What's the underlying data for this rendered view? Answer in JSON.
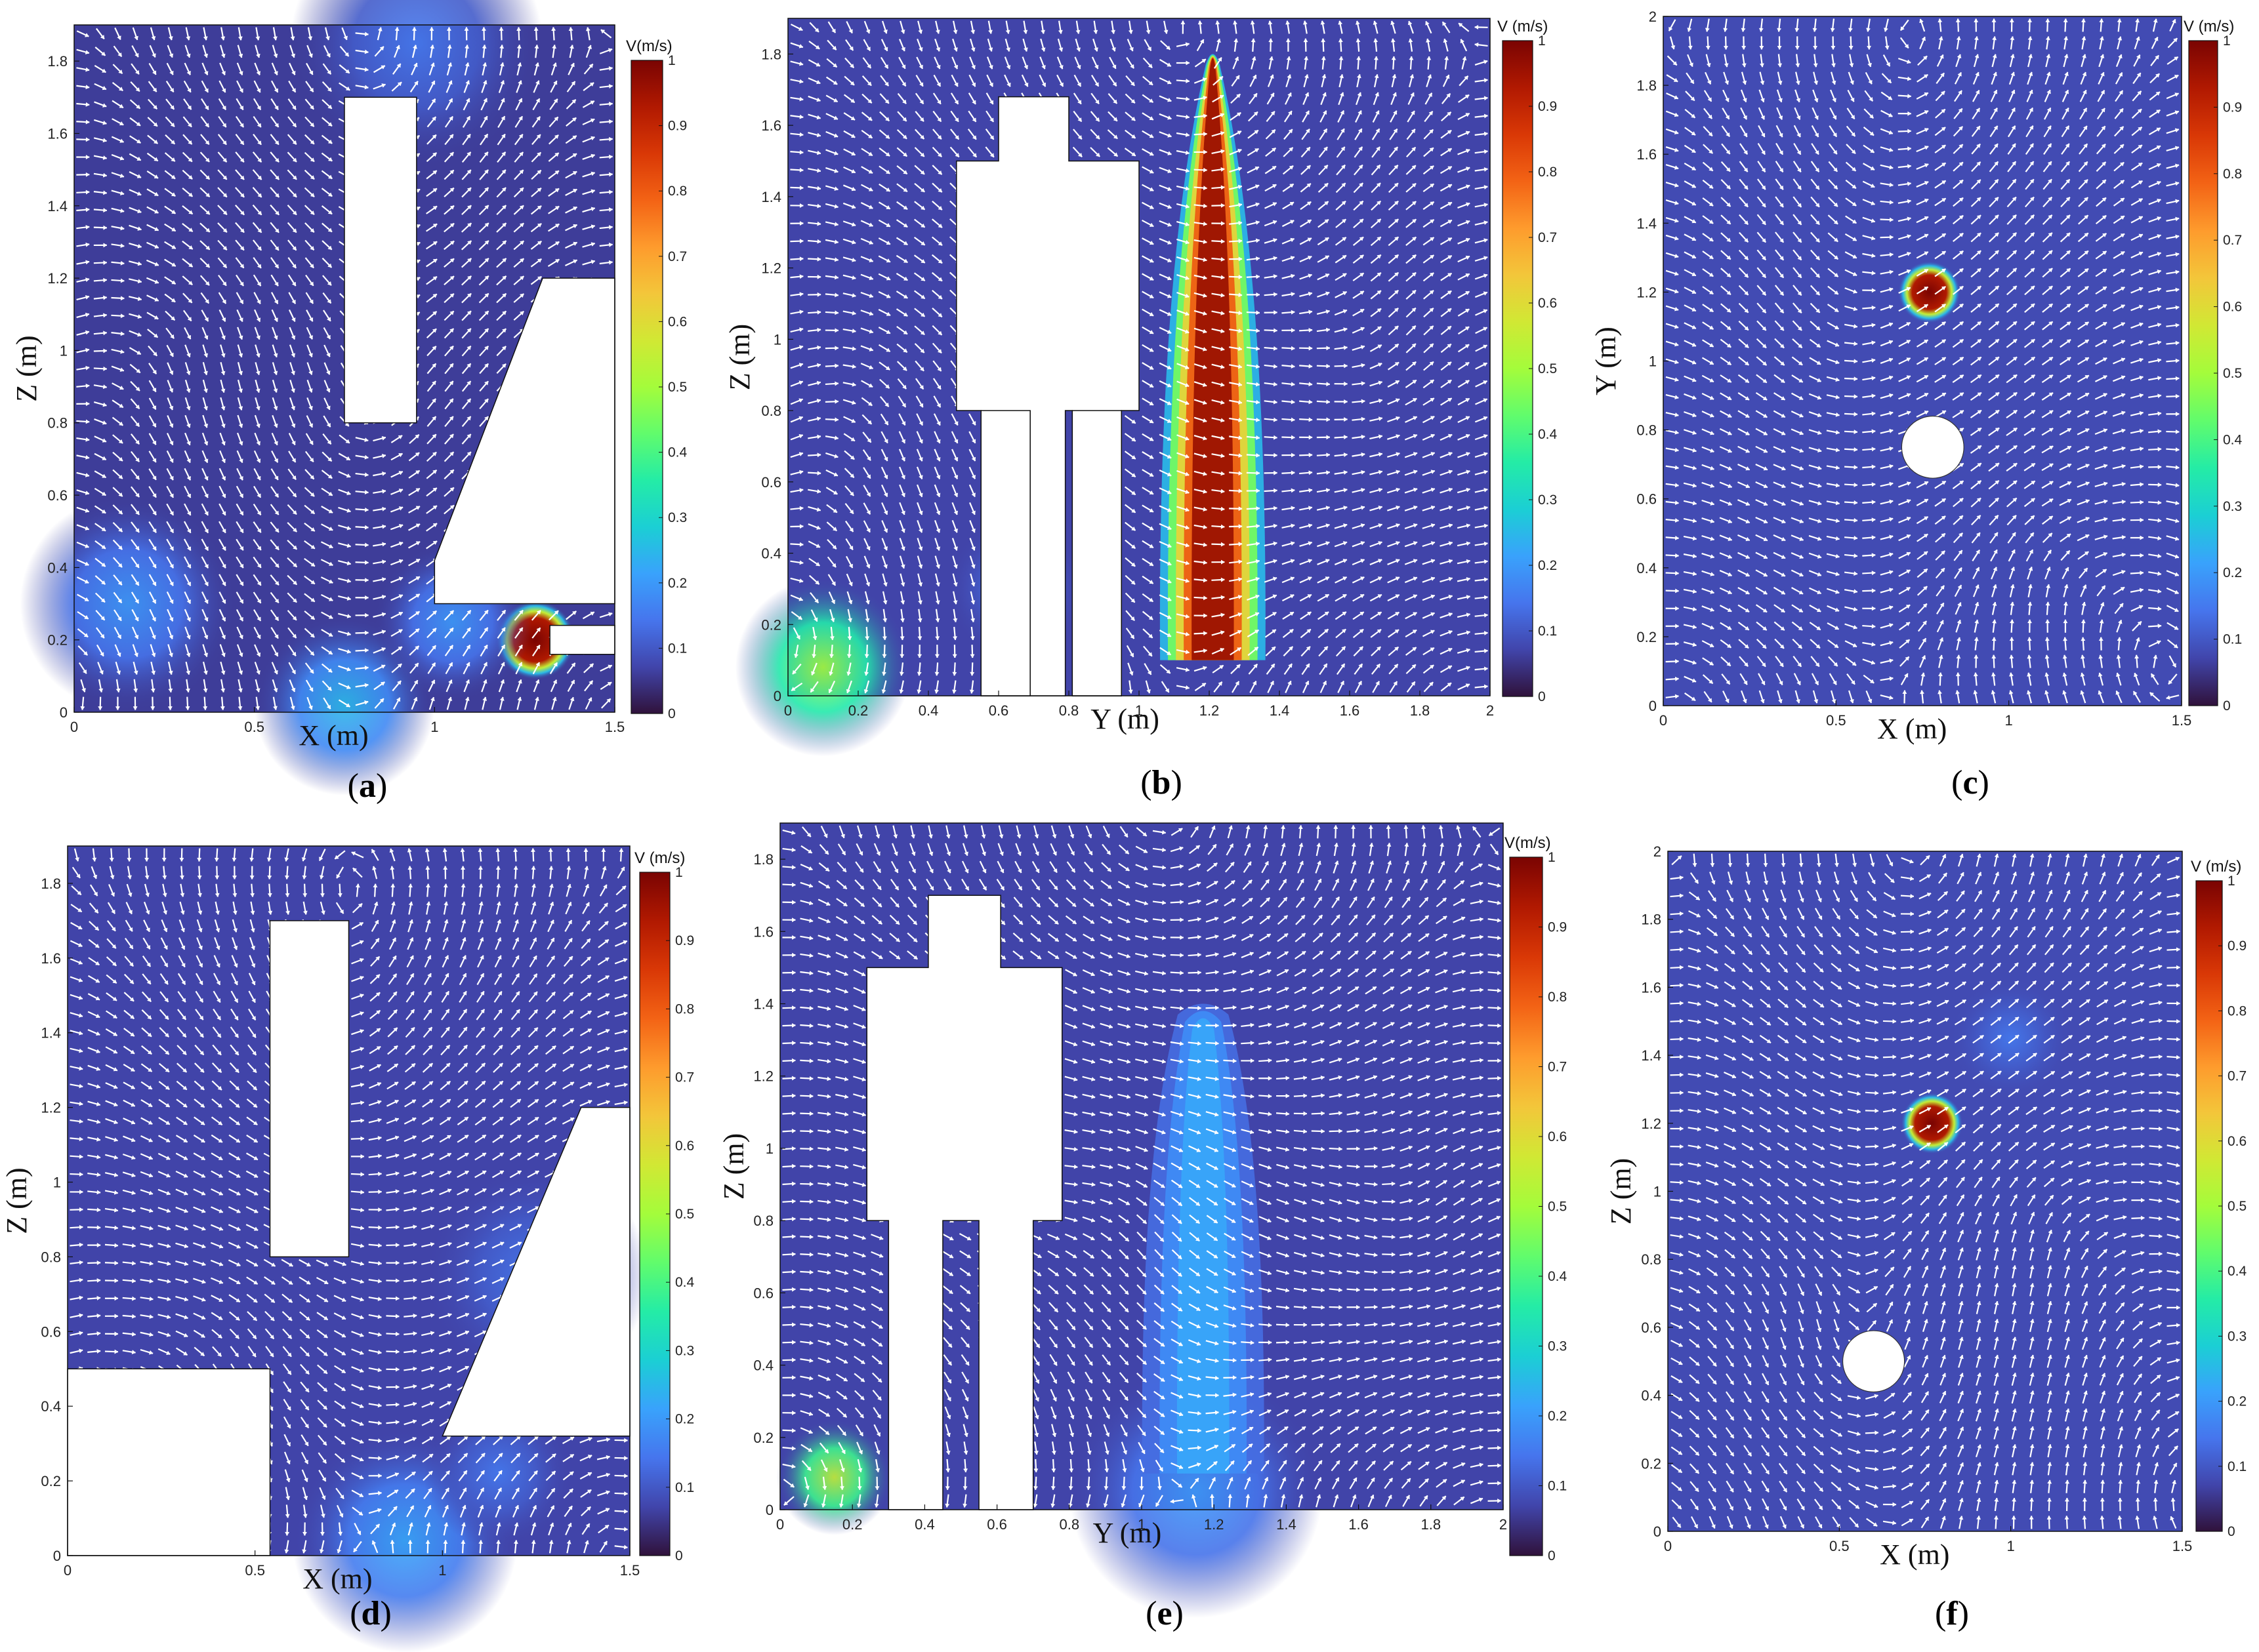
{
  "colorbar": {
    "ticks": [
      "0",
      "0.1",
      "0.2",
      "0.3",
      "0.4",
      "0.5",
      "0.6",
      "0.7",
      "0.8",
      "0.9",
      "1"
    ],
    "colormap": [
      "#30123b",
      "#4145ab",
      "#4675ed",
      "#39a2fc",
      "#1bcfd4",
      "#24eca6",
      "#61fc6c",
      "#a4fc3b",
      "#d1e834",
      "#f3c63a",
      "#fe9b2d",
      "#f36315",
      "#d93806",
      "#b11901",
      "#7a0402"
    ]
  },
  "chart_data": [
    {
      "type": "heatmap",
      "panel": "a",
      "caption": "(a)",
      "xlabel": "X (m)",
      "ylabel": "Z (m)",
      "xlim": [
        0,
        1.5
      ],
      "ylim": [
        0,
        1.9
      ],
      "xticks": [
        "0",
        "0.5",
        "1",
        "1.5"
      ],
      "yticks": [
        "0",
        "0.2",
        "0.4",
        "0.6",
        "0.8",
        "1",
        "1.2",
        "1.4",
        "1.6",
        "1.8"
      ],
      "colorbar_title": "V(m/s)",
      "clim": [
        0,
        1
      ],
      "background_speed": 0.06,
      "hotspots": [
        {
          "x": 1.28,
          "y": 0.2,
          "r": 0.11,
          "v": 1.0
        },
        {
          "x": 0.15,
          "y": 0.3,
          "r": 0.3,
          "v": 0.2
        },
        {
          "x": 0.75,
          "y": 0.02,
          "r": 0.25,
          "v": 0.25
        },
        {
          "x": 1.05,
          "y": 0.25,
          "r": 0.22,
          "v": 0.2
        },
        {
          "x": 0.95,
          "y": 1.85,
          "r": 0.35,
          "v": 0.15
        }
      ],
      "vortices": [
        {
          "x": 0.8,
          "y": 0.75,
          "s": 1
        },
        {
          "x": 0.3,
          "y": 1.1,
          "s": -1
        }
      ]
    },
    {
      "type": "heatmap",
      "panel": "b",
      "caption": "(b)",
      "xlabel": "Y (m)",
      "ylabel": "Z (m)",
      "xlim": [
        0,
        2
      ],
      "ylim": [
        0,
        1.9
      ],
      "xticks": [
        "0",
        "0.2",
        "0.4",
        "0.6",
        "0.8",
        "1",
        "1.2",
        "1.4",
        "1.6",
        "1.8",
        "2"
      ],
      "yticks": [
        "0",
        "0.2",
        "0.4",
        "0.6",
        "0.8",
        "1",
        "1.2",
        "1.4",
        "1.6",
        "1.8"
      ],
      "colorbar_title": "V (m/s)",
      "clim": [
        0,
        1
      ],
      "background_speed": 0.07,
      "hotspots": [
        {
          "x": 0.1,
          "y": 0.08,
          "r": 0.25,
          "v": 0.5
        },
        {
          "x": 0.65,
          "y": 0.3,
          "r": 0.2,
          "v": 0.15
        }
      ],
      "jets": [
        {
          "x": 1.21,
          "y_top": 1.75,
          "y_bot": 0.1,
          "half_width_top": 0.02,
          "half_width_bot": 0.15,
          "v": 1.0
        }
      ],
      "vortices": [
        {
          "x": 1.7,
          "y": 0.85,
          "s": 1
        },
        {
          "x": 0.25,
          "y": 0.9,
          "s": -1
        }
      ]
    },
    {
      "type": "heatmap",
      "panel": "c",
      "caption": "(c)",
      "xlabel": "X (m)",
      "ylabel": "Y (m)",
      "xlim": [
        0,
        1.5
      ],
      "ylim": [
        0,
        2
      ],
      "xticks": [
        "0",
        "0.5",
        "1",
        "1.5"
      ],
      "yticks": [
        "0",
        "0.2",
        "0.4",
        "0.6",
        "0.8",
        "1",
        "1.2",
        "1.4",
        "1.6",
        "1.8",
        "2"
      ],
      "colorbar_title": "V (m/s)",
      "clim": [
        0,
        1
      ],
      "background_speed": 0.08,
      "hotspots": [
        {
          "x": 0.77,
          "y": 1.2,
          "r": 0.09,
          "v": 1.0
        }
      ],
      "vortices": [
        {
          "x": 0.5,
          "y": 1.0,
          "s": 1
        },
        {
          "x": 1.1,
          "y": 0.5,
          "s": -1
        }
      ]
    },
    {
      "type": "heatmap",
      "panel": "d",
      "caption": "(d)",
      "xlabel": "X (m)",
      "ylabel": "Z (m)",
      "xlim": [
        0,
        1.5
      ],
      "ylim": [
        0,
        1.9
      ],
      "xticks": [
        "0",
        "0.5",
        "1",
        "1.5"
      ],
      "yticks": [
        "0",
        "0.2",
        "0.4",
        "0.6",
        "0.8",
        "1",
        "1.2",
        "1.4",
        "1.6",
        "1.8"
      ],
      "colorbar_title": "V (m/s)",
      "clim": [
        0,
        1
      ],
      "background_speed": 0.07,
      "hotspots": [
        {
          "x": 0.9,
          "y": 0.04,
          "r": 0.3,
          "v": 0.22
        },
        {
          "x": 1.25,
          "y": 0.75,
          "r": 0.3,
          "v": 0.15
        },
        {
          "x": 1.15,
          "y": 0.22,
          "r": 0.2,
          "v": 0.15
        }
      ],
      "vortices": [
        {
          "x": 0.7,
          "y": 1.25,
          "s": 1
        },
        {
          "x": 0.45,
          "y": 0.7,
          "s": -1
        }
      ]
    },
    {
      "type": "heatmap",
      "panel": "e",
      "caption": "(e)",
      "xlabel": "Y (m)",
      "ylabel": "Z (m)",
      "xlim": [
        0,
        2
      ],
      "ylim": [
        0,
        1.9
      ],
      "xticks": [
        "0",
        "0.2",
        "0.4",
        "0.6",
        "0.8",
        "1",
        "1.2",
        "1.4",
        "1.6",
        "1.8",
        "2"
      ],
      "yticks": [
        "0",
        "0.2",
        "0.4",
        "0.6",
        "0.8",
        "1",
        "1.2",
        "1.4",
        "1.6",
        "1.8"
      ],
      "colorbar_title": "V(m/s)",
      "clim": [
        0,
        1
      ],
      "background_speed": 0.07,
      "hotspots": [
        {
          "x": 0.15,
          "y": 0.09,
          "r": 0.16,
          "v": 0.55
        },
        {
          "x": 1.15,
          "y": 0.05,
          "r": 0.35,
          "v": 0.2
        }
      ],
      "jets": [
        {
          "x": 1.17,
          "y_top": 1.3,
          "y_bot": 0.1,
          "half_width_top": 0.05,
          "half_width_bot": 0.12,
          "v": 0.22
        }
      ],
      "vortices": [
        {
          "x": 1.75,
          "y": 0.75,
          "s": 1
        },
        {
          "x": 0.95,
          "y": 0.9,
          "s": -1
        }
      ]
    },
    {
      "type": "heatmap",
      "panel": "f",
      "caption": "(f)",
      "xlabel": "X (m)",
      "ylabel": "Z (m)",
      "xlim": [
        0,
        1.5
      ],
      "ylim": [
        0,
        2
      ],
      "xticks": [
        "0",
        "0.5",
        "1",
        "1.5"
      ],
      "yticks": [
        "0",
        "0.2",
        "0.4",
        "0.6",
        "0.8",
        "1",
        "1.2",
        "1.4",
        "1.6",
        "1.8",
        "2"
      ],
      "colorbar_title": "V (m/s)",
      "clim": [
        0,
        1
      ],
      "background_speed": 0.08,
      "hotspots": [
        {
          "x": 0.77,
          "y": 1.2,
          "r": 0.09,
          "v": 1.0
        },
        {
          "x": 1.0,
          "y": 1.45,
          "r": 0.18,
          "v": 0.15
        }
      ],
      "vortices": [
        {
          "x": 0.5,
          "y": 0.45,
          "s": 1
        },
        {
          "x": 1.1,
          "y": 1.0,
          "s": -1
        }
      ]
    }
  ]
}
